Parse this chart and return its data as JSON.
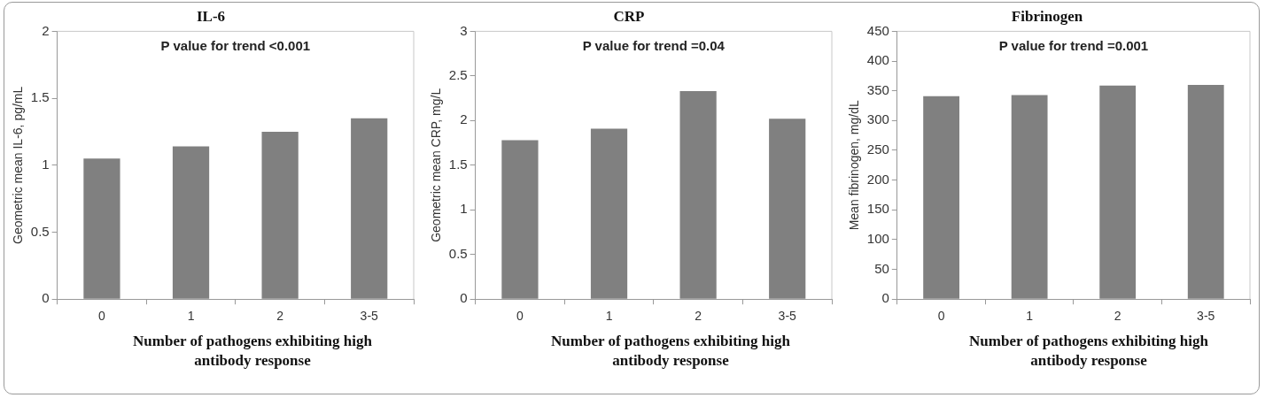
{
  "chart_data": [
    {
      "type": "bar",
      "title": "IL-6",
      "xlabel": "Number of pathogens exhibiting high antibody response",
      "ylabel": "Geometric mean IL-6, pg/mL",
      "categories": [
        "0",
        "1",
        "2",
        "3-5"
      ],
      "values": [
        1.05,
        1.14,
        1.25,
        1.35
      ],
      "color": "#808080",
      "ylim": [
        0,
        2
      ],
      "yticks": [
        0,
        0.5,
        1,
        1.5,
        2
      ],
      "grid": false,
      "legend": false,
      "annotations": [
        "P value for trend <0.001"
      ]
    },
    {
      "type": "bar",
      "title": "CRP",
      "xlabel": "Number of pathogens exhibiting high antibody response",
      "ylabel": "Geometric mean CRP, mg/L",
      "categories": [
        "0",
        "1",
        "2",
        "3-5"
      ],
      "values": [
        1.78,
        1.91,
        2.33,
        2.02
      ],
      "color": "#808080",
      "ylim": [
        0,
        3
      ],
      "yticks": [
        0,
        0.5,
        1,
        1.5,
        2,
        2.5,
        3
      ],
      "grid": false,
      "legend": false,
      "annotations": [
        "P value for trend =0.04"
      ]
    },
    {
      "type": "bar",
      "title": "Fibrinogen",
      "xlabel": "Number of pathogens exhibiting high antibody response",
      "ylabel": "Mean fibrinogen, mg/dL",
      "categories": [
        "0",
        "1",
        "2",
        "3-5"
      ],
      "values": [
        341,
        343,
        359,
        360
      ],
      "color": "#808080",
      "ylim": [
        0,
        450
      ],
      "yticks": [
        0,
        50,
        100,
        150,
        200,
        250,
        300,
        350,
        400,
        450
      ],
      "grid": false,
      "legend": false,
      "annotations": [
        "P value for trend =0.001"
      ]
    }
  ]
}
